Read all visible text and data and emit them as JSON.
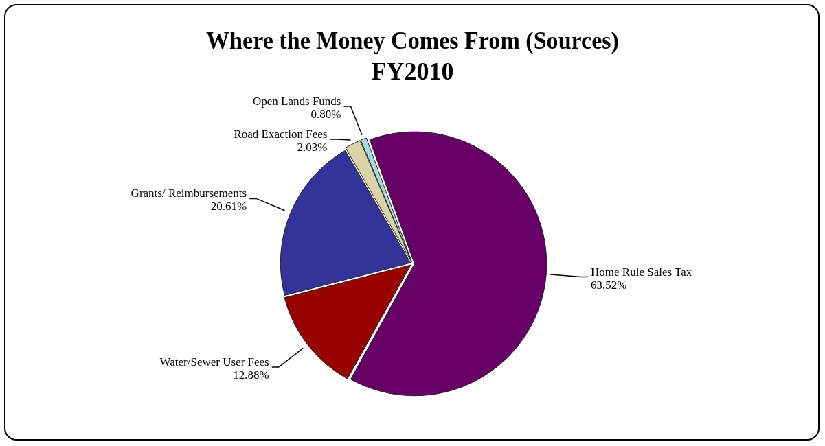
{
  "chart_data": {
    "type": "pie",
    "title": "Where the Money Comes From (Sources)",
    "subtitle": "FY2010",
    "categories": [
      "Home Rule Sales Tax",
      "Water/Sewer User Fees",
      "Grants/ Reimbursements",
      "Road Exaction Fees",
      "Open Lands Funds"
    ],
    "values": [
      63.52,
      12.88,
      20.61,
      2.03,
      0.8
    ],
    "colors": [
      "#660066",
      "#990000",
      "#333399",
      "#d8d4a8",
      "#a8d8e0"
    ],
    "value_labels": [
      "63.52%",
      "12.88%",
      "20.61%",
      "2.03%",
      "0.80%"
    ],
    "legend": false
  }
}
